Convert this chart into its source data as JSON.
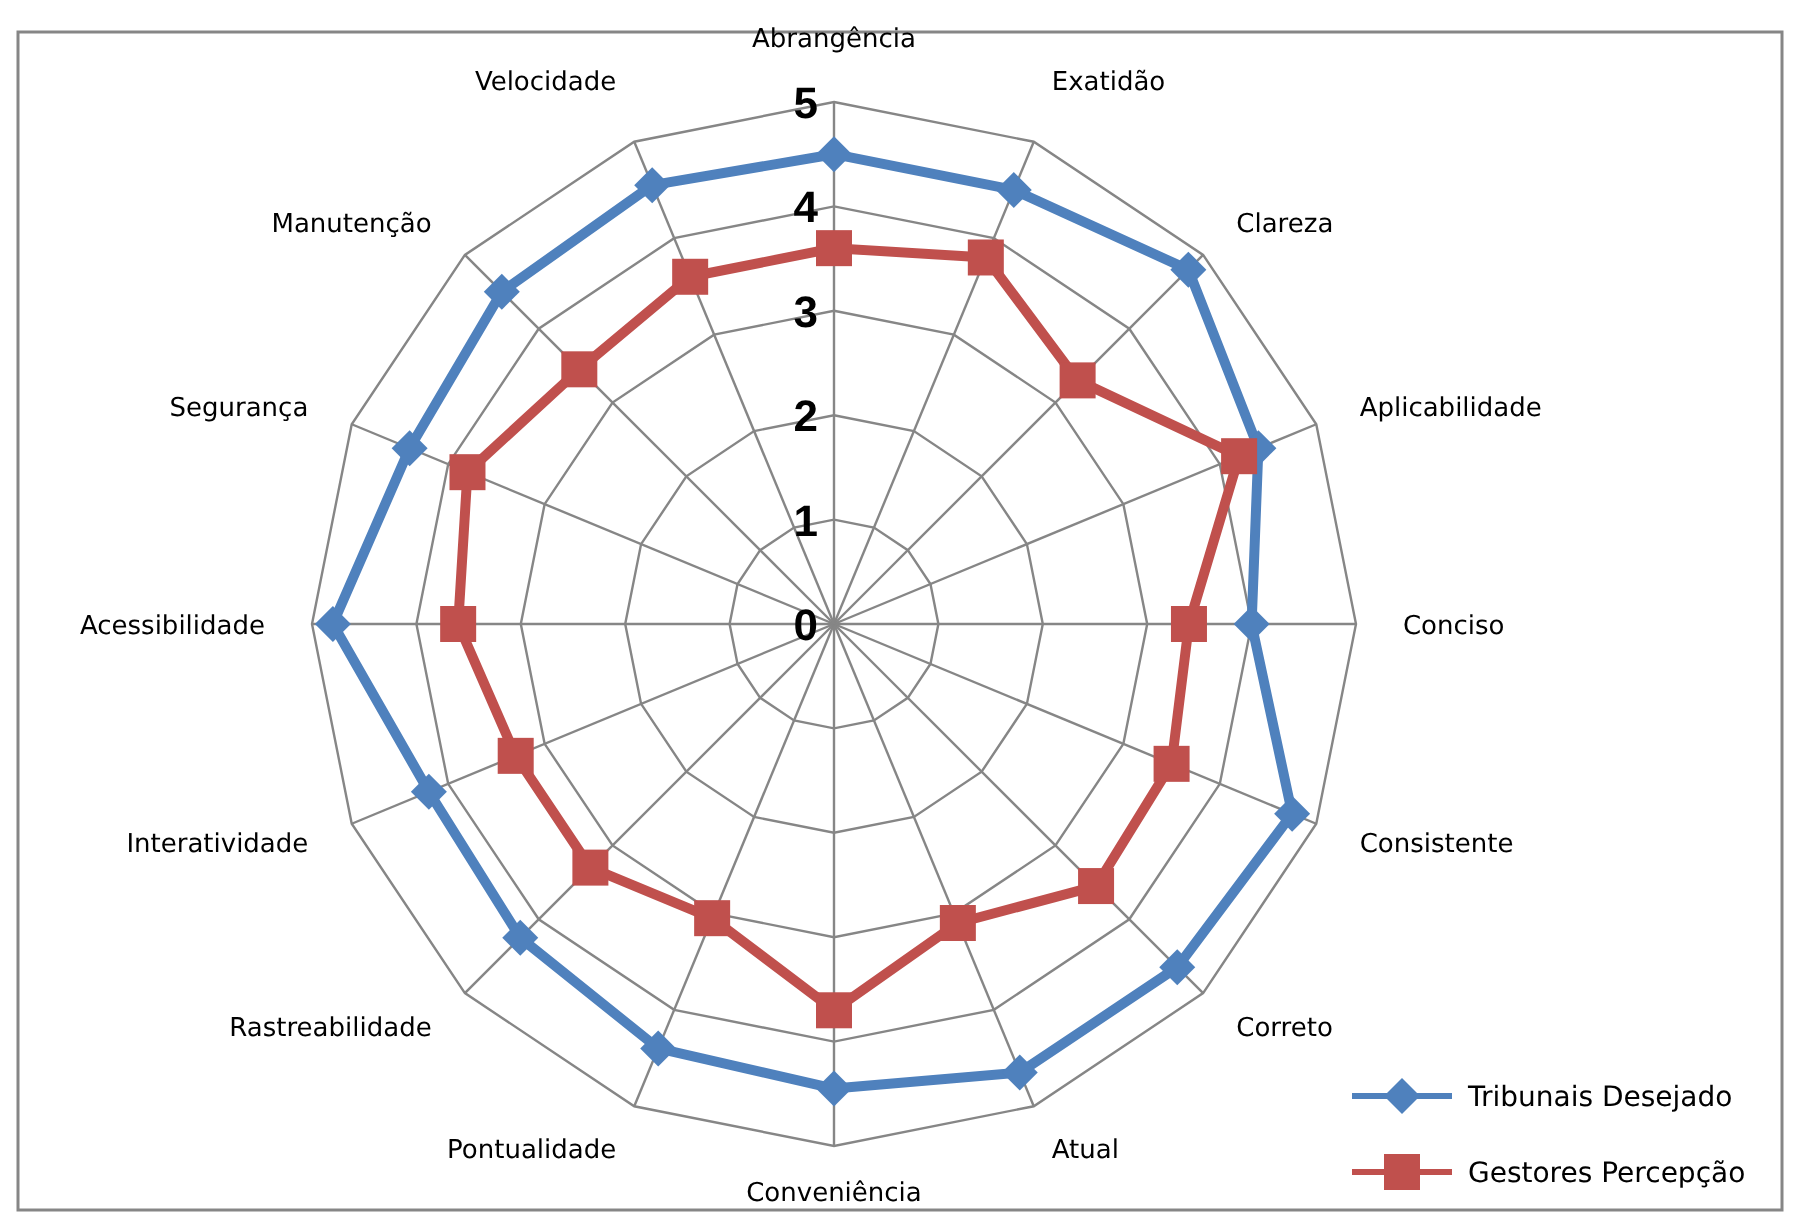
{
  "chart_data": {
    "type": "radar",
    "categories": [
      "Abrangência",
      "Exatidão",
      "Clareza",
      "Aplicabilidade",
      "Conciso",
      "Consistente",
      "Correto",
      "Atual",
      "Conveniência",
      "Pontualidade",
      "Rastreabilidade",
      "Interatividade",
      "Acessibilidade",
      "Segurança",
      "Manutenção",
      "Velocidade"
    ],
    "series": [
      {
        "name": "Tribunais Desejado",
        "color": "#4f81bd",
        "marker": "diamond",
        "values": [
          4.5,
          4.5,
          4.8,
          4.4,
          4.0,
          4.75,
          4.65,
          4.65,
          4.45,
          4.4,
          4.25,
          4.2,
          4.8,
          4.4,
          4.5,
          4.55
        ]
      },
      {
        "name": "Gestores Percepção",
        "color": "#c0504d",
        "marker": "square",
        "values": [
          3.6,
          3.8,
          3.3,
          4.2,
          3.4,
          3.5,
          3.55,
          3.1,
          3.7,
          3.05,
          3.3,
          3.3,
          3.6,
          3.8,
          3.45,
          3.6
        ]
      }
    ],
    "ylim": [
      0,
      5
    ],
    "yticks": [
      0,
      1,
      2,
      3,
      4,
      5
    ],
    "grid": true,
    "legend": "bottom right"
  }
}
